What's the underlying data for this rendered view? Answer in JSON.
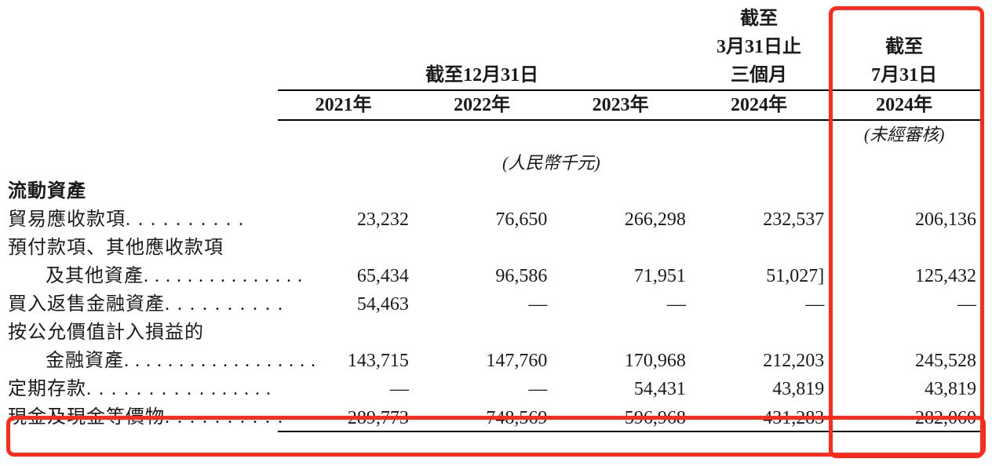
{
  "headers": {
    "group_dec31": "截至12月31日",
    "group_mar31_a": "截至",
    "group_mar31_b": "3月31日止",
    "group_mar31_c": "三個月",
    "group_jul31_a": "截至",
    "group_jul31_b": "7月31日",
    "y2021": "2021年",
    "y2022": "2022年",
    "y2023": "2023年",
    "y2024a": "2024年",
    "y2024b": "2024年",
    "unit": "(人民幣千元)",
    "unaudited": "(未經審核)"
  },
  "section_title": "流動資產",
  "rows": {
    "trade_recv": {
      "label": "貿易應收款項",
      "v": [
        "23,232",
        "76,650",
        "266,298",
        "232,537",
        "206,136"
      ]
    },
    "prepay_a": {
      "label": "預付款項、其他應收款項"
    },
    "prepay_b": {
      "label": "及其他資產",
      "v": [
        "65,434",
        "96,586",
        "71,951",
        "51,027]",
        "125,432"
      ]
    },
    "repo": {
      "label": "買入返售金融資產",
      "v": [
        "54,463",
        "—",
        "—",
        "—",
        "—"
      ]
    },
    "fvpl_a": {
      "label": "按公允價值計入損益的"
    },
    "fvpl_b": {
      "label": "金融資產",
      "v": [
        "143,715",
        "147,760",
        "170,968",
        "212,203",
        "245,528"
      ]
    },
    "time_dep": {
      "label": "定期存款",
      "v": [
        "—",
        "—",
        "54,431",
        "43,819",
        "43,819"
      ]
    },
    "cash": {
      "label": "現金及現金等價物",
      "v": [
        "289,773",
        "748,569",
        "596,968",
        "431,283",
        "282,060"
      ]
    }
  },
  "style": {
    "highlight_color": "#ff2a1a",
    "background": "#ffffff",
    "font_body": 24,
    "font_unit": 22
  }
}
